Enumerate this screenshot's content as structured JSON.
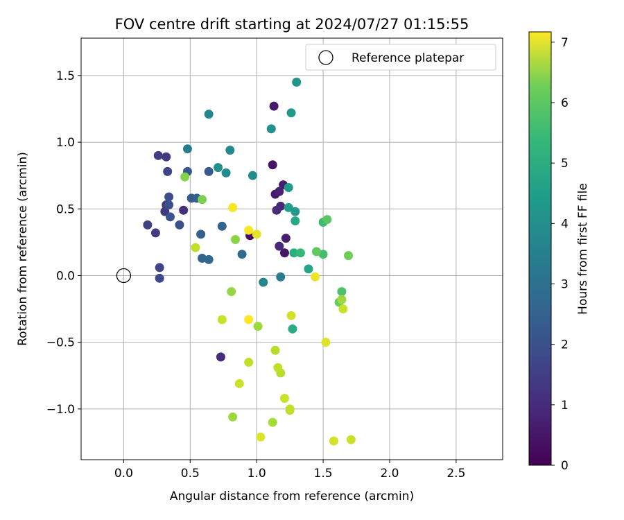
{
  "chart_data": {
    "type": "scatter",
    "title": "FOV centre drift starting at 2024/07/27 01:15:55",
    "xlabel": "Angular distance from reference (arcmin)",
    "ylabel": "Rotation from reference (arcmin)",
    "xlim": [
      -0.32,
      2.85
    ],
    "ylim": [
      -1.38,
      1.78
    ],
    "xticks": [
      0.0,
      0.5,
      1.0,
      1.5,
      2.0,
      2.5
    ],
    "xtick_labels": [
      "0.0",
      "0.5",
      "1.0",
      "1.5",
      "2.0",
      "2.5"
    ],
    "yticks": [
      -1.0,
      -0.5,
      0.0,
      0.5,
      1.0,
      1.5
    ],
    "ytick_labels": [
      "−1.0",
      "−0.5",
      "0.0",
      "0.5",
      "1.0",
      "1.5"
    ],
    "grid": true,
    "legend": {
      "placement": "upper right",
      "label": "Reference platepar"
    },
    "reference_point": {
      "x": 0.0,
      "y": 0.0
    },
    "colorbar": {
      "label": "Hours from first FF file",
      "colormap": "viridis",
      "range": [
        0,
        7.17
      ],
      "ticks": [
        0,
        1,
        2,
        3,
        4,
        5,
        6,
        7
      ],
      "tick_labels": [
        "0",
        "1",
        "2",
        "3",
        "4",
        "5",
        "6",
        "7"
      ]
    },
    "points": [
      {
        "x": 1.13,
        "y": 1.27,
        "t": 0.5
      },
      {
        "x": 1.12,
        "y": 0.83,
        "t": 0.4
      },
      {
        "x": 1.2,
        "y": 0.68,
        "t": 0.6
      },
      {
        "x": 1.17,
        "y": 0.63,
        "t": 0.7
      },
      {
        "x": 1.14,
        "y": 0.61,
        "t": 0.5
      },
      {
        "x": 1.18,
        "y": 0.52,
        "t": 0.8
      },
      {
        "x": 1.15,
        "y": 0.49,
        "t": 0.9
      },
      {
        "x": 1.22,
        "y": 0.28,
        "t": 0.6
      },
      {
        "x": 1.17,
        "y": 0.22,
        "t": 0.8
      },
      {
        "x": 1.21,
        "y": 0.17,
        "t": 0.4
      },
      {
        "x": 0.95,
        "y": 0.3,
        "t": 0.3
      },
      {
        "x": 0.73,
        "y": -0.61,
        "t": 0.9
      },
      {
        "x": 0.45,
        "y": 0.49,
        "t": 1.0
      },
      {
        "x": 0.32,
        "y": 0.53,
        "t": 1.1
      },
      {
        "x": 0.31,
        "y": 0.48,
        "t": 1.2
      },
      {
        "x": 0.26,
        "y": 0.9,
        "t": 1.3
      },
      {
        "x": 0.32,
        "y": 0.89,
        "t": 1.2
      },
      {
        "x": 0.33,
        "y": 0.78,
        "t": 1.5
      },
      {
        "x": 0.18,
        "y": 0.38,
        "t": 1.4
      },
      {
        "x": 0.24,
        "y": 0.32,
        "t": 1.3
      },
      {
        "x": 0.27,
        "y": 0.06,
        "t": 1.5
      },
      {
        "x": 0.27,
        "y": -0.02,
        "t": 1.6
      },
      {
        "x": 0.34,
        "y": 0.59,
        "t": 1.7
      },
      {
        "x": 0.34,
        "y": 0.53,
        "t": 1.8
      },
      {
        "x": 0.35,
        "y": 0.44,
        "t": 1.9
      },
      {
        "x": 0.42,
        "y": 0.38,
        "t": 1.8
      },
      {
        "x": 0.48,
        "y": 0.78,
        "t": 1.9
      },
      {
        "x": 0.51,
        "y": 0.58,
        "t": 2.0
      },
      {
        "x": 0.55,
        "y": 0.58,
        "t": 2.1
      },
      {
        "x": 0.58,
        "y": 0.31,
        "t": 2.2
      },
      {
        "x": 0.59,
        "y": 0.13,
        "t": 2.3
      },
      {
        "x": 0.64,
        "y": 0.12,
        "t": 2.4
      },
      {
        "x": 0.64,
        "y": 0.78,
        "t": 2.0
      },
      {
        "x": 0.74,
        "y": 0.37,
        "t": 2.3
      },
      {
        "x": 0.89,
        "y": 0.16,
        "t": 2.5
      },
      {
        "x": 0.48,
        "y": 0.95,
        "t": 3.0
      },
      {
        "x": 0.64,
        "y": 1.21,
        "t": 3.3
      },
      {
        "x": 0.71,
        "y": 0.81,
        "t": 3.6
      },
      {
        "x": 0.77,
        "y": 0.77,
        "t": 3.5
      },
      {
        "x": 0.8,
        "y": 0.94,
        "t": 3.4
      },
      {
        "x": 0.97,
        "y": 0.75,
        "t": 3.5
      },
      {
        "x": 1.05,
        "y": -0.05,
        "t": 3.3
      },
      {
        "x": 1.11,
        "y": 1.1,
        "t": 3.6
      },
      {
        "x": 1.18,
        "y": -0.01,
        "t": 3.0
      },
      {
        "x": 1.26,
        "y": 1.22,
        "t": 3.8
      },
      {
        "x": 1.24,
        "y": 0.66,
        "t": 3.9
      },
      {
        "x": 1.29,
        "y": 0.48,
        "t": 3.8
      },
      {
        "x": 1.3,
        "y": 1.45,
        "t": 3.7
      },
      {
        "x": 1.24,
        "y": 0.51,
        "t": 4.0
      },
      {
        "x": 1.29,
        "y": 0.41,
        "t": 4.3
      },
      {
        "x": 1.28,
        "y": 0.17,
        "t": 4.5
      },
      {
        "x": 1.33,
        "y": 0.17,
        "t": 4.8
      },
      {
        "x": 1.39,
        "y": 0.05,
        "t": 4.2
      },
      {
        "x": 1.27,
        "y": -0.4,
        "t": 4.4
      },
      {
        "x": 1.5,
        "y": 0.4,
        "t": 4.9
      },
      {
        "x": 1.53,
        "y": 0.42,
        "t": 5.3
      },
      {
        "x": 1.45,
        "y": 0.18,
        "t": 5.4
      },
      {
        "x": 1.5,
        "y": 0.16,
        "t": 5.0
      },
      {
        "x": 1.64,
        "y": -0.12,
        "t": 5.1
      },
      {
        "x": 1.62,
        "y": -0.2,
        "t": 5.5
      },
      {
        "x": 1.69,
        "y": 0.15,
        "t": 5.6
      },
      {
        "x": 0.46,
        "y": 0.74,
        "t": 5.8
      },
      {
        "x": 0.59,
        "y": 0.57,
        "t": 5.7
      },
      {
        "x": 0.84,
        "y": 0.27,
        "t": 5.9
      },
      {
        "x": 0.81,
        "y": -0.12,
        "t": 6.0
      },
      {
        "x": 1.01,
        "y": -0.38,
        "t": 6.1
      },
      {
        "x": 0.82,
        "y": -1.06,
        "t": 6.1
      },
      {
        "x": 1.12,
        "y": -1.1,
        "t": 6.2
      },
      {
        "x": 1.64,
        "y": -0.18,
        "t": 6.1
      },
      {
        "x": 0.54,
        "y": 0.21,
        "t": 6.5
      },
      {
        "x": 0.74,
        "y": -0.33,
        "t": 6.6
      },
      {
        "x": 0.94,
        "y": -0.65,
        "t": 6.5
      },
      {
        "x": 0.87,
        "y": -0.81,
        "t": 6.6
      },
      {
        "x": 1.14,
        "y": -0.56,
        "t": 6.4
      },
      {
        "x": 1.16,
        "y": -0.69,
        "t": 6.5
      },
      {
        "x": 1.18,
        "y": -0.73,
        "t": 6.4
      },
      {
        "x": 1.21,
        "y": -0.92,
        "t": 6.6
      },
      {
        "x": 1.25,
        "y": -1.0,
        "t": 6.5
      },
      {
        "x": 1.25,
        "y": -1.01,
        "t": 6.4
      },
      {
        "x": 1.26,
        "y": -0.3,
        "t": 6.7
      },
      {
        "x": 1.52,
        "y": -0.5,
        "t": 6.8
      },
      {
        "x": 1.65,
        "y": -0.25,
        "t": 6.6
      },
      {
        "x": 1.58,
        "y": -1.24,
        "t": 6.7
      },
      {
        "x": 1.71,
        "y": -1.23,
        "t": 6.6
      },
      {
        "x": 1.03,
        "y": -1.21,
        "t": 6.8
      },
      {
        "x": 1.44,
        "y": -0.01,
        "t": 7.0
      },
      {
        "x": 1.0,
        "y": 0.31,
        "t": 6.9
      },
      {
        "x": 0.94,
        "y": 0.34,
        "t": 7.1
      },
      {
        "x": 0.82,
        "y": 0.51,
        "t": 7.1
      },
      {
        "x": 0.94,
        "y": -0.33,
        "t": 7.2
      }
    ]
  }
}
